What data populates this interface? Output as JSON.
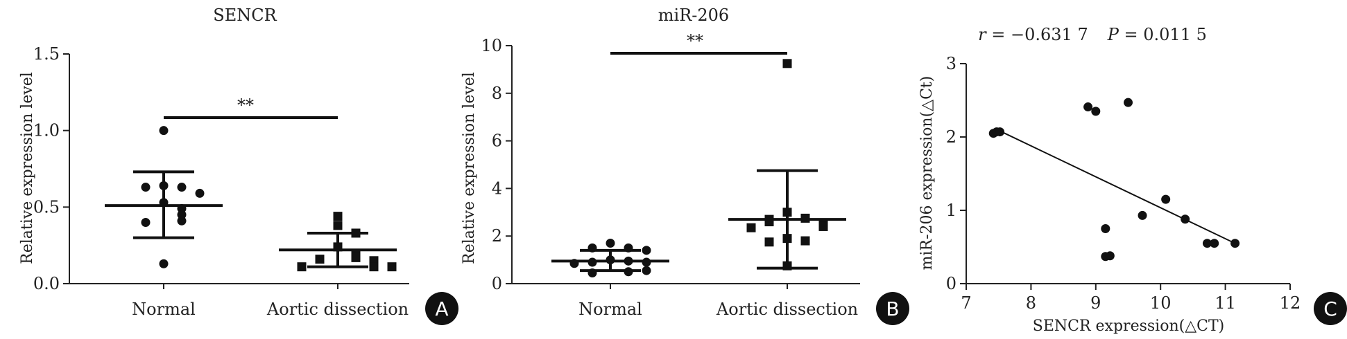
{
  "chart_data": [
    {
      "type": "scatter",
      "panel_label": "A",
      "title": "SENCR",
      "xlabel": "",
      "ylabel": "Relative expression level",
      "ylim": [
        0,
        1.5
      ],
      "yticks": [
        "0.0",
        "0.5",
        "1.0",
        "1.5"
      ],
      "categories": [
        "Normal",
        "Aortic dissection"
      ],
      "significance": "**",
      "series": [
        {
          "category": "Normal",
          "marker": "circle",
          "values": [
            1.0,
            0.64,
            0.63,
            0.63,
            0.59,
            0.53,
            0.49,
            0.45,
            0.41,
            0.4,
            0.13
          ],
          "mean": 0.51,
          "sd_low": 0.3,
          "sd_high": 0.73
        },
        {
          "category": "Aortic dissection",
          "marker": "square",
          "values": [
            0.44,
            0.38,
            0.33,
            0.24,
            0.19,
            0.17,
            0.16,
            0.15,
            0.13,
            0.11,
            0.11,
            0.11
          ],
          "mean": 0.22,
          "sd_low": 0.11,
          "sd_high": 0.33
        }
      ]
    },
    {
      "type": "scatter",
      "panel_label": "B",
      "title": "miR-206",
      "xlabel": "",
      "ylabel": "Relative expression level",
      "ylim": [
        0,
        10
      ],
      "yticks": [
        "0",
        "2",
        "4",
        "6",
        "8",
        "10"
      ],
      "categories": [
        "Normal",
        "Aortic dissection"
      ],
      "significance": "**",
      "series": [
        {
          "category": "Normal",
          "marker": "circle",
          "values": [
            1.7,
            1.5,
            1.5,
            1.4,
            1.0,
            0.95,
            0.9,
            0.9,
            0.85,
            0.55,
            0.5,
            0.45
          ],
          "mean": 0.95,
          "sd_low": 0.55,
          "sd_high": 1.4
        },
        {
          "category": "Aortic dissection",
          "marker": "square",
          "values": [
            9.25,
            3.0,
            2.75,
            2.7,
            2.6,
            2.55,
            2.4,
            2.35,
            1.9,
            1.8,
            1.75,
            0.75
          ],
          "mean": 2.7,
          "sd_low": 0.65,
          "sd_high": 4.75
        }
      ]
    },
    {
      "type": "scatter",
      "panel_label": "C",
      "title_r_label": "r",
      "title_r_value": " = −0.631 7",
      "title_p_label": "P",
      "title_p_value": " = 0.011 5",
      "xlabel": "SENCR expression(△CT)",
      "ylabel": "miR-206 expression(△Ct)",
      "xlim": [
        7,
        12
      ],
      "ylim": [
        0,
        3
      ],
      "xticks": [
        "7",
        "8",
        "9",
        "10",
        "11",
        "12"
      ],
      "yticks": [
        "0",
        "1",
        "2",
        "3"
      ],
      "points": [
        [
          7.42,
          2.05
        ],
        [
          7.47,
          2.07
        ],
        [
          7.52,
          2.07
        ],
        [
          8.88,
          2.41
        ],
        [
          9.0,
          2.35
        ],
        [
          9.5,
          2.47
        ],
        [
          9.15,
          0.75
        ],
        [
          9.15,
          0.37
        ],
        [
          9.22,
          0.38
        ],
        [
          9.72,
          0.93
        ],
        [
          10.08,
          1.15
        ],
        [
          10.38,
          0.88
        ],
        [
          10.72,
          0.55
        ],
        [
          10.83,
          0.55
        ],
        [
          11.15,
          0.55
        ]
      ],
      "regression": {
        "x": [
          7.5,
          11.15
        ],
        "y": [
          2.09,
          0.55
        ]
      }
    }
  ]
}
